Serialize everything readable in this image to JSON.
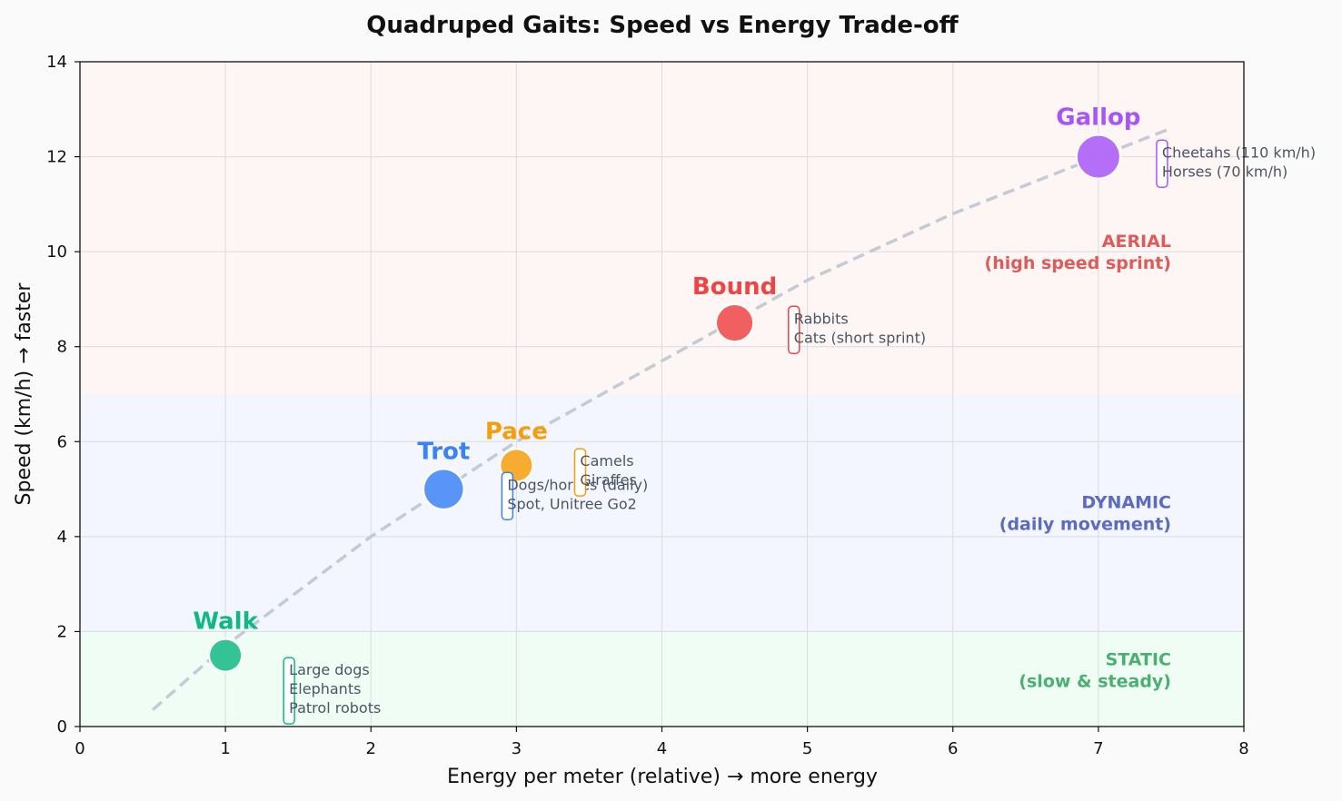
{
  "chart_data": {
    "type": "scatter",
    "title": "Quadruped Gaits: Speed vs Energy Trade-off",
    "xlabel": "Energy per meter (relative)  →  more energy",
    "ylabel": "Speed (km/h)  →  faster",
    "xlim": [
      0,
      8
    ],
    "ylim": [
      0,
      14
    ],
    "xticks": [
      0,
      1,
      2,
      3,
      4,
      5,
      6,
      7,
      8
    ],
    "yticks": [
      0,
      2,
      4,
      6,
      8,
      10,
      12,
      14
    ],
    "grid": true,
    "zones": [
      {
        "name": "STATIC",
        "sub": "(slow & steady)",
        "y_range": [
          0,
          2
        ],
        "fill": "#f0fdf4",
        "color": "#4caf72",
        "label_y": 1.2
      },
      {
        "name": "DYNAMIC",
        "sub": "(daily movement)",
        "y_range": [
          2,
          7
        ],
        "fill": "#f3f6fe",
        "color": "#5c6bc0",
        "label_y": 4.5
      },
      {
        "name": "AERIAL",
        "sub": "(high speed sprint)",
        "y_range": [
          7,
          14
        ],
        "fill": "#fef5f5",
        "color": "#e05a5a",
        "label_y": 10
      }
    ],
    "trend": {
      "x": [
        0.5,
        1,
        2,
        3,
        4,
        5,
        6,
        7,
        7.5
      ],
      "y": [
        0.35,
        1.7,
        4.0,
        6.0,
        7.7,
        9.4,
        10.8,
        12.0,
        12.6
      ],
      "color": "#c4cbd6"
    },
    "points": [
      {
        "name": "Walk",
        "x": 1,
        "y": 1.5,
        "size": 1,
        "color": "#10b981",
        "examples": [
          "Large dogs",
          "Elephants",
          "Patrol robots"
        ],
        "box_x": 1.4,
        "box_y_top": 1.45
      },
      {
        "name": "Trot",
        "x": 2.5,
        "y": 5,
        "size": 1.25,
        "color": "#3b82f6",
        "examples": [
          "Dogs/horses (daily)",
          "Spot, Unitree Go2"
        ],
        "box_x": 2.9,
        "box_y_top": 5.35
      },
      {
        "name": "Pace",
        "x": 3,
        "y": 5.5,
        "size": 1,
        "color": "#f59e0b",
        "examples": [
          "Camels",
          "Giraffes"
        ],
        "box_x": 3.4,
        "box_y_top": 5.85
      },
      {
        "name": "Bound",
        "x": 4.5,
        "y": 8.5,
        "size": 1.15,
        "color": "#ef4444",
        "examples": [
          "Rabbits",
          "Cats (short sprint)"
        ],
        "box_x": 4.87,
        "box_y_top": 8.85
      },
      {
        "name": "Gallop",
        "x": 7,
        "y": 12,
        "size": 1.35,
        "color": "#a855f7",
        "examples": [
          "Cheetahs (110 km/h)",
          "Horses (70 km/h)"
        ],
        "box_x": 7.4,
        "box_y_top": 12.35
      }
    ]
  }
}
